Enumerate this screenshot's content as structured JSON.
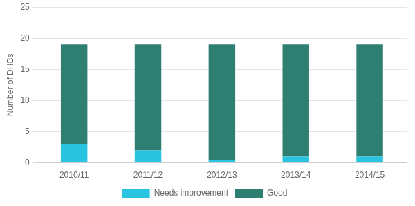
{
  "chart_data": {
    "type": "bar",
    "stacked": true,
    "categories": [
      "2010/11",
      "2011/12",
      "2012/13",
      "2013/14",
      "2014/15"
    ],
    "series": [
      {
        "name": "Needs improvement",
        "color": "#29c5e0",
        "values": [
          3,
          2,
          0.5,
          1,
          1
        ]
      },
      {
        "name": "Good",
        "color": "#2e7e72",
        "values": [
          16,
          17,
          18.5,
          18,
          18
        ]
      }
    ],
    "ylabel": "Number of DHBs",
    "ylim": [
      0,
      25
    ],
    "yticks": [
      0,
      5,
      10,
      15,
      20,
      25
    ],
    "grid": true,
    "legend": "bottom"
  }
}
